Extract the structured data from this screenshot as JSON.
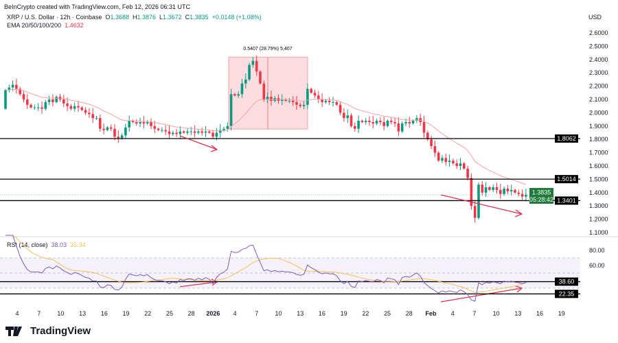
{
  "credit": "BeInCrypto created with TradingView.com, Feb 12, 2026 06:31 UTC",
  "symbol": {
    "name": "XRP / U.S. Dollar · 12h · Coinbase",
    "o_label": "O",
    "o": "1.3688",
    "h_label": "H",
    "h": "1.3876",
    "l_label": "L",
    "l": "1.3672",
    "c_label": "C",
    "c": "1.3835",
    "change": "+0.0148 (+1.08%)"
  },
  "ema": {
    "label": "EMA 20/50/100/200",
    "value": "1.4632"
  },
  "currency": "USD",
  "rsi_legend": {
    "label": "RSI (14, close)",
    "rsi": "38.03",
    "ma": "35.34"
  },
  "logo_text": "TradingView",
  "colors": {
    "up": "#089981",
    "down": "#f23645",
    "ema": "#f7a1a1",
    "rsi": "#7e57c2",
    "rsi_ma": "#f5c05a",
    "box": "#fbd5d8",
    "arrow": "#e0314a"
  },
  "chart_data": {
    "type": "candlestick",
    "interval": "12h",
    "start": "2025-12-02 12:00",
    "closes": [
      2.17,
      2.19,
      2.21,
      2.18,
      2.14,
      2.1,
      2.06,
      2.04,
      2.04,
      2.04,
      2.03,
      2.08,
      2.1,
      2.08,
      2.12,
      2.1,
      2.07,
      2.05,
      2.03,
      2.05,
      2.04,
      2.02,
      2.0,
      1.99,
      1.96,
      1.96,
      1.88,
      1.87,
      1.89,
      1.88,
      1.82,
      1.81,
      1.83,
      1.89,
      1.94,
      1.93,
      1.92,
      1.93,
      1.92,
      1.93,
      1.9,
      1.88,
      1.87,
      1.87,
      1.86,
      1.84,
      1.85,
      1.84,
      1.86,
      1.85,
      1.86,
      1.86,
      1.85,
      1.86,
      1.85,
      1.86,
      1.85,
      1.82,
      1.85,
      1.87,
      1.88,
      1.9,
      2.14,
      2.13,
      2.14,
      2.22,
      2.25,
      2.36,
      2.39,
      2.31,
      2.22,
      2.1,
      2.12,
      2.09,
      2.11,
      2.09,
      2.1,
      2.09,
      2.09,
      2.08,
      2.06,
      2.05,
      2.06,
      2.18,
      2.15,
      2.13,
      2.1,
      2.08,
      2.09,
      2.08,
      2.08,
      2.06,
      2.0,
      1.96,
      1.98,
      1.9,
      1.88,
      1.94,
      1.93,
      1.94,
      1.93,
      1.92,
      1.94,
      1.93,
      1.9,
      1.94,
      1.93,
      1.92,
      1.86,
      1.92,
      1.93,
      1.92,
      1.94,
      1.96,
      1.93,
      1.85,
      1.8,
      1.75,
      1.7,
      1.64,
      1.66,
      1.63,
      1.64,
      1.62,
      1.6,
      1.62,
      1.58,
      1.51,
      1.3,
      1.21,
      1.46,
      1.4,
      1.44,
      1.42,
      1.44,
      1.42,
      1.39,
      1.43,
      1.41,
      1.42,
      1.4,
      1.39,
      1.37,
      1.3835
    ],
    "first_open": 2.03,
    "price_axis": {
      "ticks": [
        "2.6000",
        "2.5000",
        "2.4000",
        "2.3000",
        "2.2000",
        "2.1000",
        "2.0000",
        "1.9000",
        "1.8000",
        "1.7000",
        "1.6000",
        "1.5000",
        "1.4000",
        "1.3000",
        "1.2000",
        "1.1000"
      ],
      "range": [
        1.1,
        2.6
      ]
    },
    "levels": [
      {
        "value": 1.8062,
        "label": "1.8062"
      },
      {
        "value": 1.5014,
        "label": "1.5014"
      },
      {
        "value": 1.3401,
        "label": "1.3401"
      }
    ],
    "last_price": {
      "value": 1.3835,
      "label": "1.3835",
      "countdown": "05:28:42"
    },
    "measure": {
      "label": "0.5407 (28.79%) 5,407",
      "from": 1.8776,
      "to": 2.4183,
      "start": "2025-12-31",
      "end": "2026-01-13"
    },
    "rsi_axis": {
      "ticks": [
        "80.00",
        "60.00"
      ],
      "levels": [
        {
          "value": 38.6,
          "label": "38.60"
        },
        {
          "value": 22.35,
          "label": "22.35"
        }
      ],
      "band": [
        30,
        70
      ]
    },
    "x_ticks": [
      "4",
      "7",
      "10",
      "13",
      "16",
      "19",
      "22",
      "25",
      "28",
      "2026",
      "4",
      "7",
      "10",
      "13",
      "16",
      "19",
      "22",
      "25",
      "28",
      "Feb",
      "4",
      "7",
      "10",
      "13",
      "16",
      "19"
    ]
  }
}
